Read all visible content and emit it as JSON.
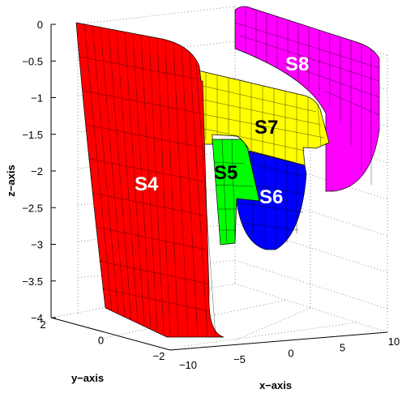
{
  "chart_data": {
    "type": "surface",
    "xlabel": "x−axis",
    "ylabel": "y−axis",
    "zlabel": "z−axis",
    "xlim": [
      -10,
      10
    ],
    "ylim": [
      -2,
      2
    ],
    "zlim": [
      -4,
      0
    ],
    "x_ticks": [
      "−10",
      "−5",
      "0",
      "5",
      "10"
    ],
    "y_ticks": [
      "2",
      "0",
      "−2"
    ],
    "z_ticks": [
      "0",
      "−0.5",
      "−1",
      "−1.5",
      "−2",
      "−2.5",
      "−3",
      "−3.5",
      "−4"
    ],
    "grid": true,
    "surfaces": [
      {
        "name": "S4",
        "color": "#ff0000"
      },
      {
        "name": "S5",
        "color": "#00ff00"
      },
      {
        "name": "S6",
        "color": "#0000ff"
      },
      {
        "name": "S7",
        "color": "#ffff00"
      },
      {
        "name": "S8",
        "color": "#ff00ff"
      }
    ]
  }
}
